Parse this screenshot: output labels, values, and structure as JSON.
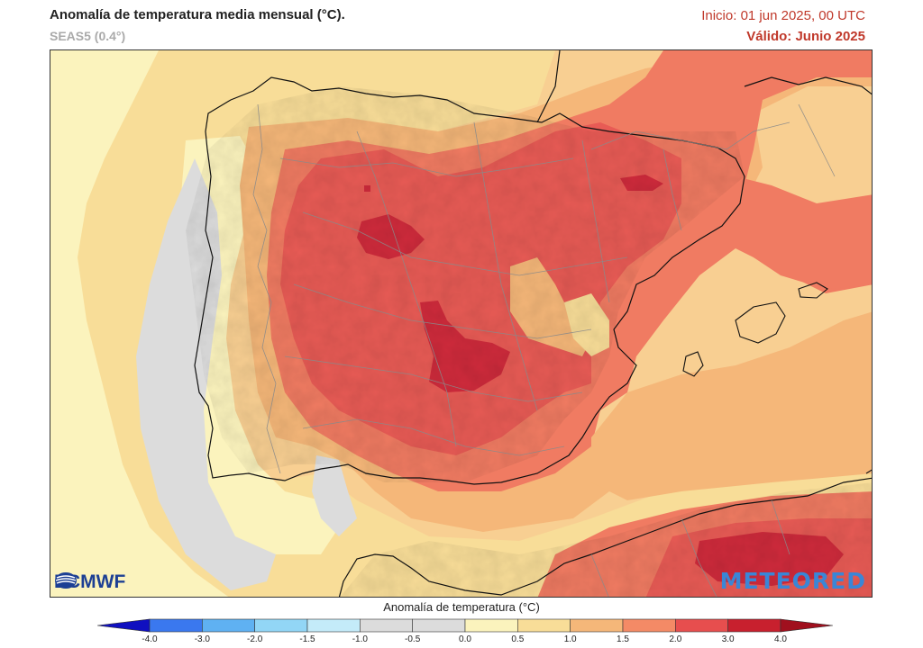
{
  "header": {
    "title": "Anomalía de temperatura media mensual (°C).",
    "subtitle": "SEAS5 (0.4°)",
    "init_text": "Inicio: 01 jun 2025, 00 UTC",
    "valid_text": "Válido: Junio 2025"
  },
  "logos": {
    "ecmwf": "ECMWF",
    "meteored": "METEORED"
  },
  "colorbar": {
    "title": "Anomalía de temperatura (°C)",
    "ticks": [
      "-4.0",
      "-3.0",
      "-2.0",
      "-1.5",
      "-1.0",
      "-0.5",
      "0.0",
      "0.5",
      "1.0",
      "1.5",
      "2.0",
      "3.0",
      "4.0"
    ],
    "colors": [
      "#1a2bd6",
      "#3a78ef",
      "#5fb1f2",
      "#92d6f6",
      "#c4ebf9",
      "#dcdcdc",
      "#dcdcdc",
      "#fbf3bd",
      "#f8dd98",
      "#f5b779",
      "#f48a66",
      "#e74e4e",
      "#c8202e"
    ],
    "under_color": "#1010c0",
    "over_color": "#a0101e"
  },
  "map_colors": {
    "sea_base": "#f8cf92",
    "gray": "#dcdcdc",
    "pale_yellow": "#fbf3bd",
    "light_orange": "#f8dd98",
    "orange": "#f5b779",
    "red_orange": "#f07b62",
    "red": "#e85b55",
    "dark_red": "#cf2b3c",
    "coast": "#111111",
    "border": "#888888"
  }
}
